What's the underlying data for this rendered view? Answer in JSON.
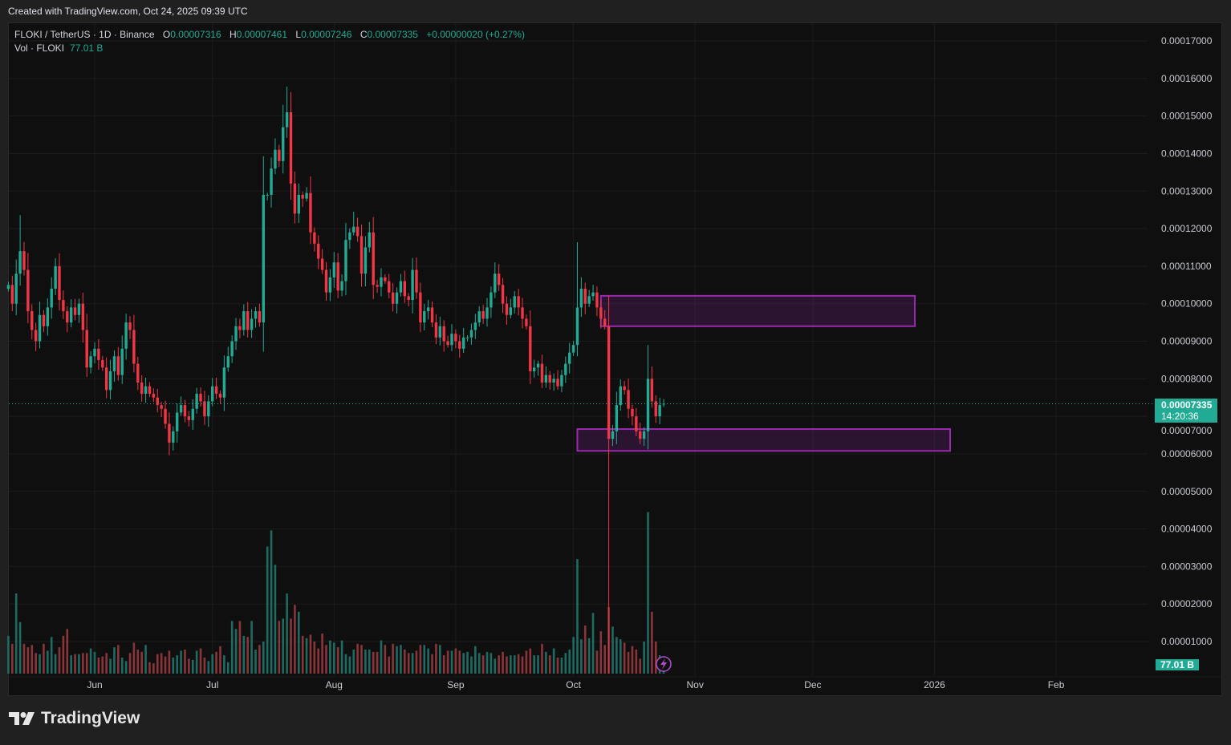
{
  "watermark": {
    "created": "Created with TradingView.com, Oct 24, 2025 09:39 UTC"
  },
  "legend": {
    "symbol": "FLOKI / TetherUS · 1D · Binance",
    "o_label": "O",
    "o": "0.00007316",
    "h_label": "H",
    "h": "0.00007461",
    "l_label": "L",
    "l": "0.00007246",
    "c_label": "C",
    "c": "0.00007335",
    "change": "+0.00000020 (+0.27%)",
    "vol_label": "Vol · FLOKI",
    "vol": "77.01 B"
  },
  "price_axis": {
    "ticks": [
      "0.00017000",
      "0.00016000",
      "0.00015000",
      "0.00014000",
      "0.00013000",
      "0.00012000",
      "0.00011000",
      "0.00010000",
      "0.00009000",
      "0.00008000",
      "0.00007000",
      "0.00006000",
      "0.00005000",
      "0.00004000",
      "0.00003000",
      "0.00002000",
      "0.00001000"
    ]
  },
  "last_price": {
    "price": "0.00007335",
    "countdown": "14:20:36"
  },
  "volume_badge": "77.01 B",
  "time_axis": {
    "ticks": [
      {
        "label": "Jun",
        "date": "2025-06-01"
      },
      {
        "label": "Jul",
        "date": "2025-07-01"
      },
      {
        "label": "Aug",
        "date": "2025-08-01"
      },
      {
        "label": "Sep",
        "date": "2025-09-01"
      },
      {
        "label": "Oct",
        "date": "2025-10-01"
      },
      {
        "label": "Nov",
        "date": "2025-11-01"
      },
      {
        "label": "Dec",
        "date": "2025-12-01"
      },
      {
        "label": "2026",
        "date": "2026-01-01"
      },
      {
        "label": "Feb",
        "date": "2026-02-01"
      }
    ]
  },
  "logo": "TradingView",
  "icons": {
    "alert": "lightning-icon",
    "logo": "tradingview-logo-icon"
  },
  "colors": {
    "up": "#22ab94",
    "down": "#f23645",
    "vol_up": "#1d6b63",
    "vol_down": "#8a3539",
    "zone": "#9c27b0",
    "background": "#0f0f0f",
    "grid": "#1c1c1c"
  },
  "chart_data": {
    "type": "candlestick",
    "interval": "1D",
    "ylim": [
      1.5e-06,
      0.000176
    ],
    "xlim": [
      "2025-05-09",
      "2026-02-24"
    ],
    "grid": true,
    "series": [
      {
        "name": "FLOKI / TetherUS",
        "close_by_month": [
          {
            "month": "2025-05",
            "first_day": 10,
            "close": [
              0.000105,
              0.0001,
              0.000108,
              0.000114,
              0.000109,
              9.8e-05,
              9.3e-05,
              9e-05,
              9.7e-05,
              9.4e-05,
              9.9e-05,
              0.000104,
              0.00011,
              0.000101,
              9.8e-05,
              9.5e-05,
              9.9e-05,
              9.7e-05,
              0.0001,
              9.3e-05,
              8.3e-05,
              8.6e-05
            ]
          },
          {
            "month": "2025-06",
            "first_day": 1,
            "close": [
              8.8e-05,
              8.5e-05,
              8.3e-05,
              7.7e-05,
              8.2e-05,
              8.6e-05,
              8.1e-05,
              8.8e-05,
              9.5e-05,
              9.3e-05,
              8.4e-05,
              7.9e-05,
              7.6e-05,
              7.8e-05,
              7.6e-05,
              7.5e-05,
              7.3e-05,
              7.2e-05,
              6.8e-05,
              6.3e-05,
              6.6e-05,
              7.1e-05,
              7.3e-05,
              7e-05,
              6.9e-05,
              7.2e-05,
              7.6e-05,
              7.4e-05,
              7e-05,
              7.4e-05
            ]
          },
          {
            "month": "2025-07",
            "first_day": 1,
            "close": [
              7.8e-05,
              7.6e-05,
              7.5e-05,
              8.3e-05,
              8.6e-05,
              9e-05,
              9.4e-05,
              9.3e-05,
              9.8e-05,
              9.3e-05,
              9.6e-05,
              9.8e-05,
              9.5e-05,
              0.000129,
              0.000129,
              0.000136,
              0.000141,
              0.000138,
              0.000147,
              0.000151,
              0.000132,
              0.000124,
              0.000129,
              0.000128,
              0.0001295,
              0.000119,
              0.000116,
              0.000112,
              0.000109,
              0.000103,
              0.000107
            ]
          },
          {
            "month": "2025-08",
            "first_day": 1,
            "close": [
              0.000111,
              0.0001035,
              0.000106,
              0.000117,
              0.000119,
              0.0001205,
              0.000118,
              0.000108,
              0.000115,
              0.000119,
              0.000105,
              0.0001045,
              0.000107,
              0.000106,
              0.000103,
              0.0001,
              0.000103,
              0.000106,
              0.000102,
              0.000101,
              0.000109,
              0.000103,
              9.5e-05,
              9.8e-05,
              9.9e-05,
              9.5e-05,
              9.1e-05,
              9.4e-05,
              9e-05,
              8.9e-05,
              9.2e-05
            ]
          },
          {
            "month": "2025-09",
            "first_day": 1,
            "close": [
              9e-05,
              8.8e-05,
              9.1e-05,
              9.1e-05,
              9.3e-05,
              9.5e-05,
              9.8e-05,
              9.6e-05,
              9.9e-05,
              0.000103,
              0.000108,
              0.000105,
              0.0001,
              9.7e-05,
              9.9e-05,
              0.000102,
              9.9e-05,
              9.6e-05,
              9.4e-05,
              8.2e-05,
              8.3e-05,
              8.4e-05,
              7.9e-05,
              8.1e-05,
              7.9e-05,
              8e-05,
              7.8e-05,
              8.1e-05,
              8.4e-05,
              8.7e-05
            ]
          },
          {
            "month": "2025-10",
            "first_day": 1,
            "close": [
              8.9e-05,
              9.9e-05,
              0.000104,
              0.0001,
              0.000102,
              0.000103,
              9.9e-05,
              9.6e-05,
              9.4e-05,
              6.4e-05,
              6.6e-05,
              7.3e-05,
              7.8e-05,
              7.7e-05,
              7.2e-05,
              7e-05,
              6.6e-05,
              6.4e-05,
              6.6e-05,
              8e-05,
              7.4e-05,
              7e-05,
              7.3e-05,
              7.335e-05
            ]
          }
        ],
        "wick_extremes": [
          {
            "date": "2025-05-13",
            "high": 0.0001236
          },
          {
            "date": "2025-06-20",
            "low": 5.96e-05
          },
          {
            "date": "2025-07-19",
            "high": 0.000153
          },
          {
            "date": "2025-07-20",
            "high": 0.0001578
          },
          {
            "date": "2025-08-06",
            "high": 0.0001245
          },
          {
            "date": "2025-09-11",
            "high": 0.000111
          },
          {
            "date": "2025-10-02",
            "high": 0.0001164
          },
          {
            "date": "2025-10-10",
            "low": 1.5e-06
          },
          {
            "date": "2025-10-20",
            "high": 8.9e-05
          }
        ],
        "last_candle": {
          "date": "2025-10-24",
          "open": 7.316e-05,
          "high": 7.461e-05,
          "low": 7.246e-05,
          "close": 7.335e-05
        }
      }
    ],
    "volume": {
      "unit": "B",
      "by_month": [
        {
          "month": "2025-05",
          "first_day": 10,
          "values": [
            330,
            260,
            700,
            450,
            260,
            230,
            250,
            180,
            170,
            260,
            200,
            320,
            170,
            230,
            330,
            390,
            160,
            170,
            170,
            180,
            180,
            220
          ]
        },
        {
          "month": "2025-06",
          "first_day": 1,
          "values": [
            190,
            140,
            150,
            180,
            130,
            230,
            250,
            140,
            110,
            180,
            270,
            210,
            190,
            250,
            100,
            90,
            170,
            180,
            150,
            200,
            140,
            160,
            200,
            210,
            130,
            120,
            200,
            220,
            140,
            110
          ]
        },
        {
          "month": "2025-07",
          "first_day": 1,
          "values": [
            170,
            190,
            240,
            160,
            100,
            460,
            390,
            460,
            330,
            320,
            460,
            210,
            250,
            280,
            1110,
            1250,
            950,
            460,
            480,
            700,
            480,
            600,
            540,
            330,
            310,
            340,
            280,
            220,
            350,
            250,
            290
          ]
        },
        {
          "month": "2025-08",
          "first_day": 1,
          "values": [
            270,
            230,
            290,
            170,
            150,
            210,
            260,
            250,
            210,
            210,
            190,
            190,
            290,
            250,
            150,
            260,
            240,
            250,
            210,
            180,
            180,
            200,
            250,
            250,
            220,
            170,
            260,
            250,
            160,
            200,
            200
          ]
        },
        {
          "month": "2025-09",
          "first_day": 1,
          "values": [
            220,
            200,
            180,
            190,
            150,
            240,
            180,
            160,
            190,
            180,
            130,
            160,
            190,
            150,
            160,
            160,
            170,
            150,
            200,
            220,
            160,
            160,
            260,
            190,
            160,
            220,
            140,
            140,
            180,
            210
          ]
        },
        {
          "month": "2025-10",
          "first_day": 1,
          "values": [
            320,
            1000,
            300,
            420,
            310,
            530,
            200,
            370,
            250,
            580,
            410,
            320,
            300,
            270,
            190,
            240,
            210,
            130,
            280,
            1410,
            540,
            280,
            160,
            77.01
          ]
        }
      ]
    },
    "zones": [
      {
        "from": "2025-10-08",
        "to": "2025-12-27",
        "top": 0.0001021,
        "bottom": 9.4e-05
      },
      {
        "from": "2025-10-02",
        "to": "2026-01-05",
        "top": 6.66e-05,
        "bottom": 6.08e-05
      }
    ],
    "current_price_line": 7.335e-05
  }
}
